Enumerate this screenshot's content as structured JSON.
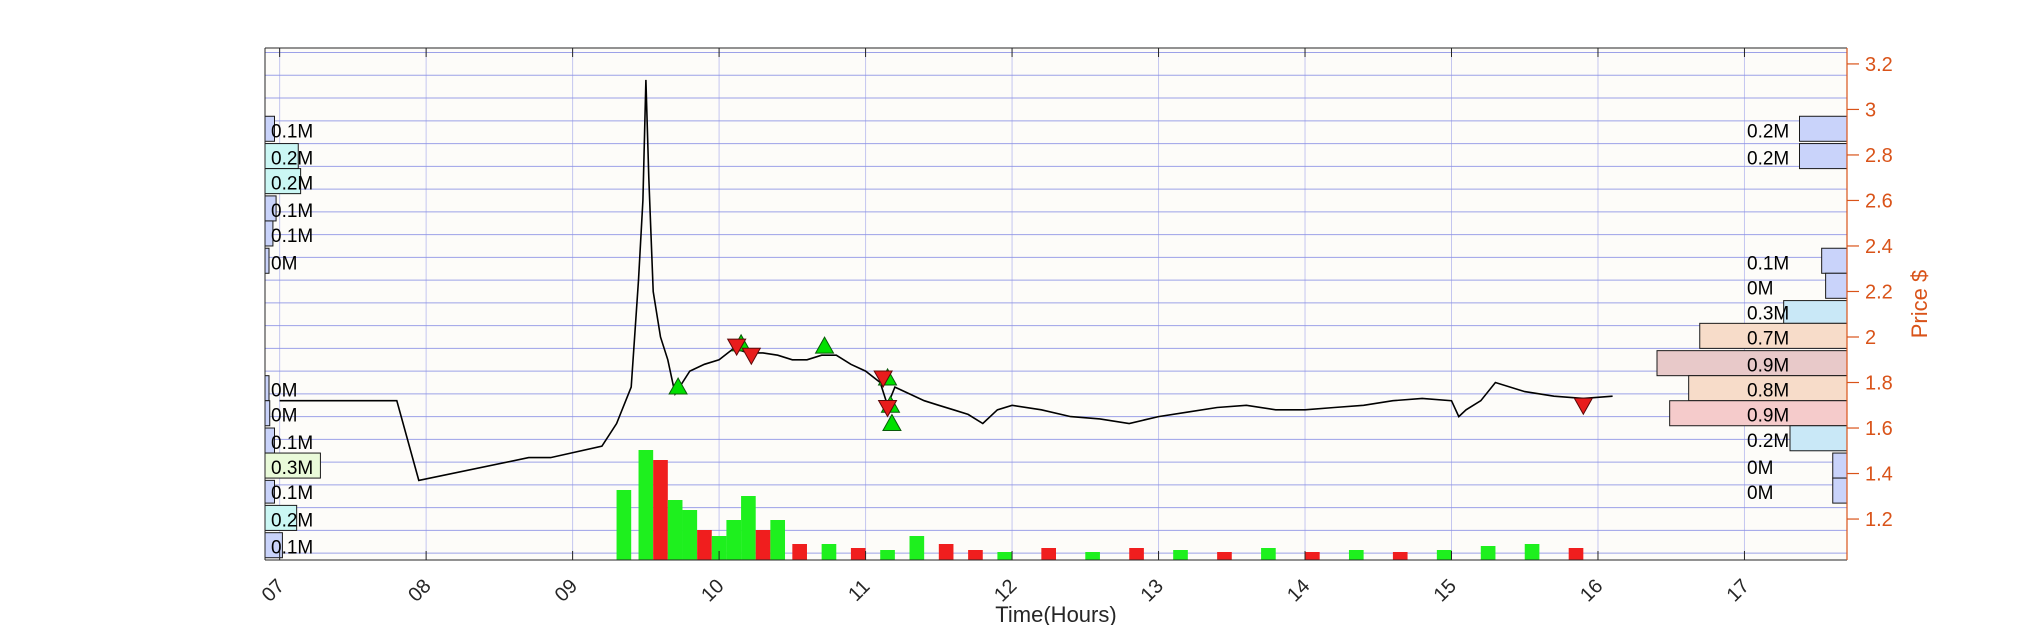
{
  "chart_data": {
    "type": "line",
    "title": "",
    "xlabel": "Time(Hours)",
    "ylabel": "Price $",
    "xlim": [
      6.9,
      17.7
    ],
    "ylim": [
      1.02,
      3.27
    ],
    "x_ticks": [
      7,
      8,
      9,
      10,
      11,
      12,
      13,
      14,
      15,
      16,
      17
    ],
    "x_tick_labels": [
      "07",
      "08",
      "09",
      "10",
      "11",
      "12",
      "13",
      "14",
      "15",
      "16",
      "17"
    ],
    "y_ticks": [
      1.2,
      1.4,
      1.6,
      1.8,
      2.0,
      2.2,
      2.4,
      2.6,
      2.8,
      3.0,
      3.2
    ],
    "y_tick_labels": [
      "1.2",
      "1.4",
      "1.6",
      "1.8",
      "2",
      "2.2",
      "2.4",
      "2.6",
      "2.8",
      "3",
      "3.2"
    ],
    "grid": true,
    "price_series": {
      "name": "",
      "x": [
        7.0,
        7.8,
        7.95,
        8.7,
        8.85,
        9.2,
        9.3,
        9.4,
        9.45,
        9.48,
        9.5,
        9.52,
        9.55,
        9.6,
        9.65,
        9.7,
        9.75,
        9.8,
        9.9,
        10.0,
        10.1,
        10.2,
        10.3,
        10.4,
        10.5,
        10.6,
        10.7,
        10.8,
        10.9,
        11.0,
        11.1,
        11.15,
        11.2,
        11.3,
        11.4,
        11.5,
        11.6,
        11.7,
        11.8,
        11.9,
        12.0,
        12.2,
        12.4,
        12.6,
        12.8,
        13.0,
        13.2,
        13.4,
        13.6,
        13.8,
        14.0,
        14.2,
        14.4,
        14.6,
        14.8,
        15.0,
        15.05,
        15.1,
        15.2,
        15.3,
        15.5,
        15.7,
        15.9,
        16.1
      ],
      "y": [
        1.72,
        1.72,
        1.37,
        1.47,
        1.47,
        1.52,
        1.62,
        1.78,
        2.25,
        2.6,
        3.13,
        2.7,
        2.2,
        2.0,
        1.9,
        1.75,
        1.8,
        1.85,
        1.88,
        1.9,
        1.95,
        1.93,
        1.93,
        1.92,
        1.9,
        1.9,
        1.92,
        1.92,
        1.88,
        1.85,
        1.8,
        1.7,
        1.78,
        1.75,
        1.72,
        1.7,
        1.68,
        1.66,
        1.62,
        1.68,
        1.7,
        1.68,
        1.65,
        1.64,
        1.62,
        1.65,
        1.67,
        1.69,
        1.7,
        1.68,
        1.68,
        1.69,
        1.7,
        1.72,
        1.73,
        1.72,
        1.65,
        1.68,
        1.72,
        1.8,
        1.76,
        1.74,
        1.73,
        1.74
      ]
    },
    "buy_signals": {
      "x": [
        9.72,
        10.15,
        10.72,
        11.15,
        11.17,
        11.18
      ],
      "y": [
        1.78,
        1.97,
        1.96,
        1.82,
        1.7,
        1.62
      ]
    },
    "sell_signals": {
      "x": [
        10.12,
        10.22,
        11.12,
        11.15,
        15.9
      ],
      "y": [
        1.96,
        1.92,
        1.82,
        1.69,
        1.7
      ]
    },
    "volume_bars": {
      "x": [
        9.3,
        9.45,
        9.55,
        9.65,
        9.75,
        9.85,
        9.95,
        10.05,
        10.15,
        10.25,
        10.35,
        10.5,
        10.7,
        10.9,
        11.1,
        11.3,
        11.5,
        11.7,
        11.9,
        12.2,
        12.5,
        12.8,
        13.1,
        13.4,
        13.7,
        14.0,
        14.3,
        14.6,
        14.9,
        15.2,
        15.5,
        15.8
      ],
      "v": [
        0.35,
        0.55,
        0.5,
        0.3,
        0.25,
        0.15,
        0.12,
        0.2,
        0.32,
        0.15,
        0.2,
        0.08,
        0.08,
        0.06,
        0.05,
        0.12,
        0.08,
        0.05,
        0.04,
        0.06,
        0.04,
        0.06,
        0.05,
        0.04,
        0.06,
        0.04,
        0.05,
        0.04,
        0.05,
        0.07,
        0.08,
        0.06
      ],
      "side": [
        "buy",
        "buy",
        "sell",
        "buy",
        "buy",
        "sell",
        "buy",
        "buy",
        "buy",
        "sell",
        "buy",
        "sell",
        "buy",
        "sell",
        "buy",
        "buy",
        "sell",
        "sell",
        "buy",
        "sell",
        "buy",
        "sell",
        "buy",
        "sell",
        "buy",
        "sell",
        "buy",
        "sell",
        "buy",
        "buy",
        "buy",
        "sell"
      ]
    },
    "volume_profile_left": [
      {
        "y0": 2.86,
        "y1": 2.97,
        "volume": 0.12,
        "label": "0.1M",
        "color": "#c9d3fa"
      },
      {
        "y0": 2.74,
        "y1": 2.85,
        "volume": 0.42,
        "label": "0.2M",
        "color": "#cbf7f4"
      },
      {
        "y0": 2.63,
        "y1": 2.74,
        "volume": 0.45,
        "label": "0.2M",
        "color": "#cbf7f4"
      },
      {
        "y0": 2.51,
        "y1": 2.62,
        "volume": 0.14,
        "label": "0.1M",
        "color": "#c9d3fa"
      },
      {
        "y0": 2.4,
        "y1": 2.51,
        "volume": 0.1,
        "label": "0.1M",
        "color": "#c9d3fa"
      },
      {
        "y0": 2.28,
        "y1": 2.39,
        "volume": 0.04,
        "label": "0M",
        "color": "#c9d3fa"
      },
      {
        "y0": 1.72,
        "y1": 1.83,
        "volume": 0.0,
        "label": "0M",
        "color": "#c9d3fa"
      },
      {
        "y0": 1.61,
        "y1": 1.72,
        "volume": 0.06,
        "label": "0M",
        "color": "#c9d3fa"
      },
      {
        "y0": 1.49,
        "y1": 1.6,
        "volume": 0.12,
        "label": "0.1M",
        "color": "#c9d3fa"
      },
      {
        "y0": 1.38,
        "y1": 1.49,
        "volume": 0.7,
        "label": "0.3M",
        "color": "#e9fad9"
      },
      {
        "y0": 1.27,
        "y1": 1.37,
        "volume": 0.12,
        "label": "0.1M",
        "color": "#c9d3fa"
      },
      {
        "y0": 1.15,
        "y1": 1.26,
        "volume": 0.4,
        "label": "0.2M",
        "color": "#cbf7f4"
      },
      {
        "y0": 1.03,
        "y1": 1.14,
        "volume": 0.22,
        "label": "0.1M",
        "color": "#c9d3fa"
      }
    ],
    "volume_profile_right": [
      {
        "y0": 2.86,
        "y1": 2.97,
        "volume": 0.6,
        "label": "0.2M",
        "color": "#c9d3fa"
      },
      {
        "y0": 2.74,
        "y1": 2.85,
        "volume": 0.6,
        "label": "0.2M",
        "color": "#c9d3fa"
      },
      {
        "y0": 2.28,
        "y1": 2.39,
        "volume": 0.32,
        "label": "0.1M",
        "color": "#c9d3fa"
      },
      {
        "y0": 2.17,
        "y1": 2.28,
        "volume": 0.27,
        "label": "0M",
        "color": "#c9d3fa"
      },
      {
        "y0": 2.06,
        "y1": 2.16,
        "volume": 0.8,
        "label": "0.3M",
        "color": "#c9e8f7"
      },
      {
        "y0": 1.95,
        "y1": 2.06,
        "volume": 1.86,
        "label": "0.7M",
        "color": "#f7dcc9"
      },
      {
        "y0": 1.83,
        "y1": 1.94,
        "volume": 2.4,
        "label": "0.9M",
        "color": "#e8c9c9"
      },
      {
        "y0": 1.72,
        "y1": 1.83,
        "volume": 2.0,
        "label": "0.8M",
        "color": "#f7dcc9"
      },
      {
        "y0": 1.61,
        "y1": 1.72,
        "volume": 2.24,
        "label": "0.9M",
        "color": "#f5cbcb"
      },
      {
        "y0": 1.5,
        "y1": 1.61,
        "volume": 0.72,
        "label": "0.2M",
        "color": "#c9e8f7"
      },
      {
        "y0": 1.38,
        "y1": 1.49,
        "volume": 0.18,
        "label": "0M",
        "color": "#c9d3fa"
      },
      {
        "y0": 1.27,
        "y1": 1.38,
        "volume": 0.18,
        "label": "0M",
        "color": "#c9d3fa"
      }
    ],
    "colors": {
      "grid": "#8c92e6",
      "price": "#000000",
      "buy_volume": "#1ef01e",
      "sell_volume": "#f01e1e",
      "buy_marker": "#00e000",
      "sell_marker": "#e81c1c",
      "right_axis": "#d95319",
      "axis": "#262626"
    }
  }
}
